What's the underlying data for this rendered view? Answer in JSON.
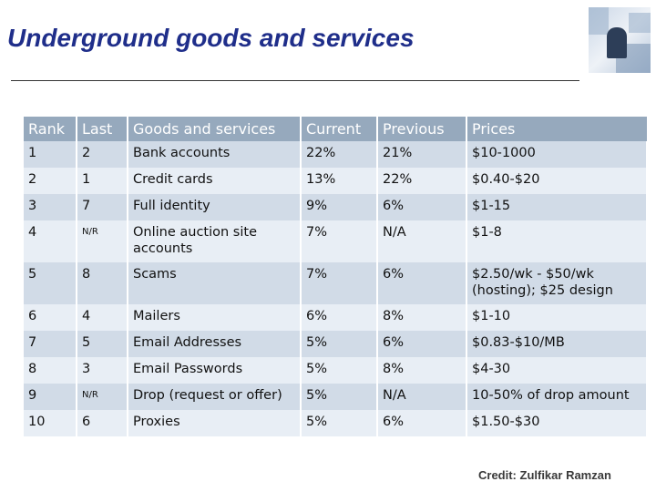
{
  "slide": {
    "title": "Underground goods and services",
    "credit": "Credit: Zulfikar Ramzan"
  },
  "table": {
    "headers": [
      "Rank",
      "Last",
      "Goods and services",
      "Current",
      "Previous",
      "Prices"
    ],
    "rows": [
      [
        "1",
        "2",
        "Bank accounts",
        "22%",
        "21%",
        "$10-1000"
      ],
      [
        "2",
        "1",
        "Credit cards",
        "13%",
        "22%",
        "$0.40-$20"
      ],
      [
        "3",
        "7",
        "Full identity",
        "9%",
        "6%",
        "$1-15"
      ],
      [
        "4",
        "N/R",
        "Online auction site accounts",
        "7%",
        "N/A",
        "$1-8"
      ],
      [
        "5",
        "8",
        "Scams",
        "7%",
        "6%",
        "$2.50/wk - $50/wk (hosting); $25 design"
      ],
      [
        "6",
        "4",
        "Mailers",
        "6%",
        "8%",
        "$1-10"
      ],
      [
        "7",
        "5",
        "Email Addresses",
        "5%",
        "6%",
        "$0.83-$10/MB"
      ],
      [
        "8",
        "3",
        "Email Passwords",
        "5%",
        "8%",
        "$4-30"
      ],
      [
        "9",
        "N/R",
        "Drop (request or offer)",
        "5%",
        "N/A",
        "10-50% of drop amount"
      ],
      [
        "10",
        "6",
        "Proxies",
        "5%",
        "6%",
        "$1.50-$30"
      ]
    ]
  },
  "colors": {
    "title": "#1f2e8a",
    "header_bg": "#96a9bd",
    "row_odd": "#d1dbe7",
    "row_even": "#e8eef5"
  },
  "icons": {
    "logo": "business-person-photo-icon"
  }
}
